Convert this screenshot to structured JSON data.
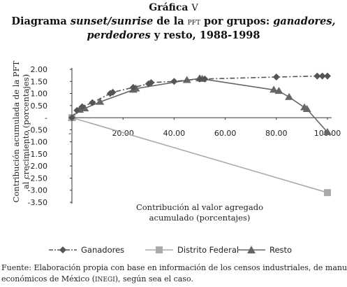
{
  "figure": {
    "label": "Gráfica",
    "number": "V",
    "title_parts": {
      "a": "Diagrama ",
      "b": "sunset/sunrise",
      "c": " de la ",
      "d": "pft",
      "e": " por grupos: ",
      "f": "ganadores,",
      "g": "perdedores",
      "h": " y resto, 1988-1998"
    }
  },
  "chart_data": {
    "type": "line",
    "xlabel": "Contribución al valor agregado acumulado (porcentajes)",
    "ylabel": "Contribución acumulada de la PFT al crecimiento (porcentajes)",
    "xlim": [
      0,
      100
    ],
    "ylim": [
      -3.5,
      2.0
    ],
    "x_ticks": [
      "20.00",
      "40.00",
      "60.00",
      "80.00",
      "100.00"
    ],
    "y_ticks": [
      "2.00",
      "1.50",
      "1.00",
      "0.50",
      "-",
      "-0.50",
      "-1.00",
      "-1.50",
      "-2.00",
      "-2.50",
      "-3.00",
      "-3.50"
    ],
    "x_origin_label": "-",
    "legend_position": "bottom",
    "series": [
      {
        "name": "Ganadores",
        "color": "#555555",
        "marker": "diamond",
        "line": "dash-dot",
        "points": [
          [
            0,
            0
          ],
          [
            2,
            0.3
          ],
          [
            4,
            0.45
          ],
          [
            8,
            0.62
          ],
          [
            15,
            1.0
          ],
          [
            16,
            1.05
          ],
          [
            24,
            1.25
          ],
          [
            30,
            1.4
          ],
          [
            31,
            1.45
          ],
          [
            40,
            1.5
          ],
          [
            50,
            1.6
          ],
          [
            52,
            1.6
          ],
          [
            80,
            1.68
          ],
          [
            96,
            1.72
          ],
          [
            98,
            1.72
          ],
          [
            100,
            1.72
          ]
        ]
      },
      {
        "name": "Distrito Federal",
        "color": "#aaaaaa",
        "marker": "square",
        "line": "solid",
        "points": [
          [
            0,
            0
          ],
          [
            100,
            -3.1
          ]
        ]
      },
      {
        "name": "Resto",
        "color": "#666666",
        "marker": "triangle",
        "line": "solid",
        "points": [
          [
            0,
            0
          ],
          [
            3,
            0.32
          ],
          [
            5,
            0.38
          ],
          [
            11,
            0.65
          ],
          [
            24,
            1.15
          ],
          [
            25,
            1.2
          ],
          [
            45,
            1.55
          ],
          [
            50,
            1.62
          ],
          [
            51,
            1.6
          ],
          [
            79,
            1.15
          ],
          [
            81,
            1.1
          ],
          [
            85,
            0.85
          ],
          [
            91,
            0.42
          ],
          [
            92,
            0.35
          ],
          [
            100,
            -0.6
          ]
        ]
      }
    ]
  },
  "source_text": "Fuente: Elaboración propia con base en información de los censos industriales, de manufacturas o",
  "source_line2": "económicos de México (",
  "source_sc": "inegi",
  "source_line2_end": "), según sea el caso."
}
